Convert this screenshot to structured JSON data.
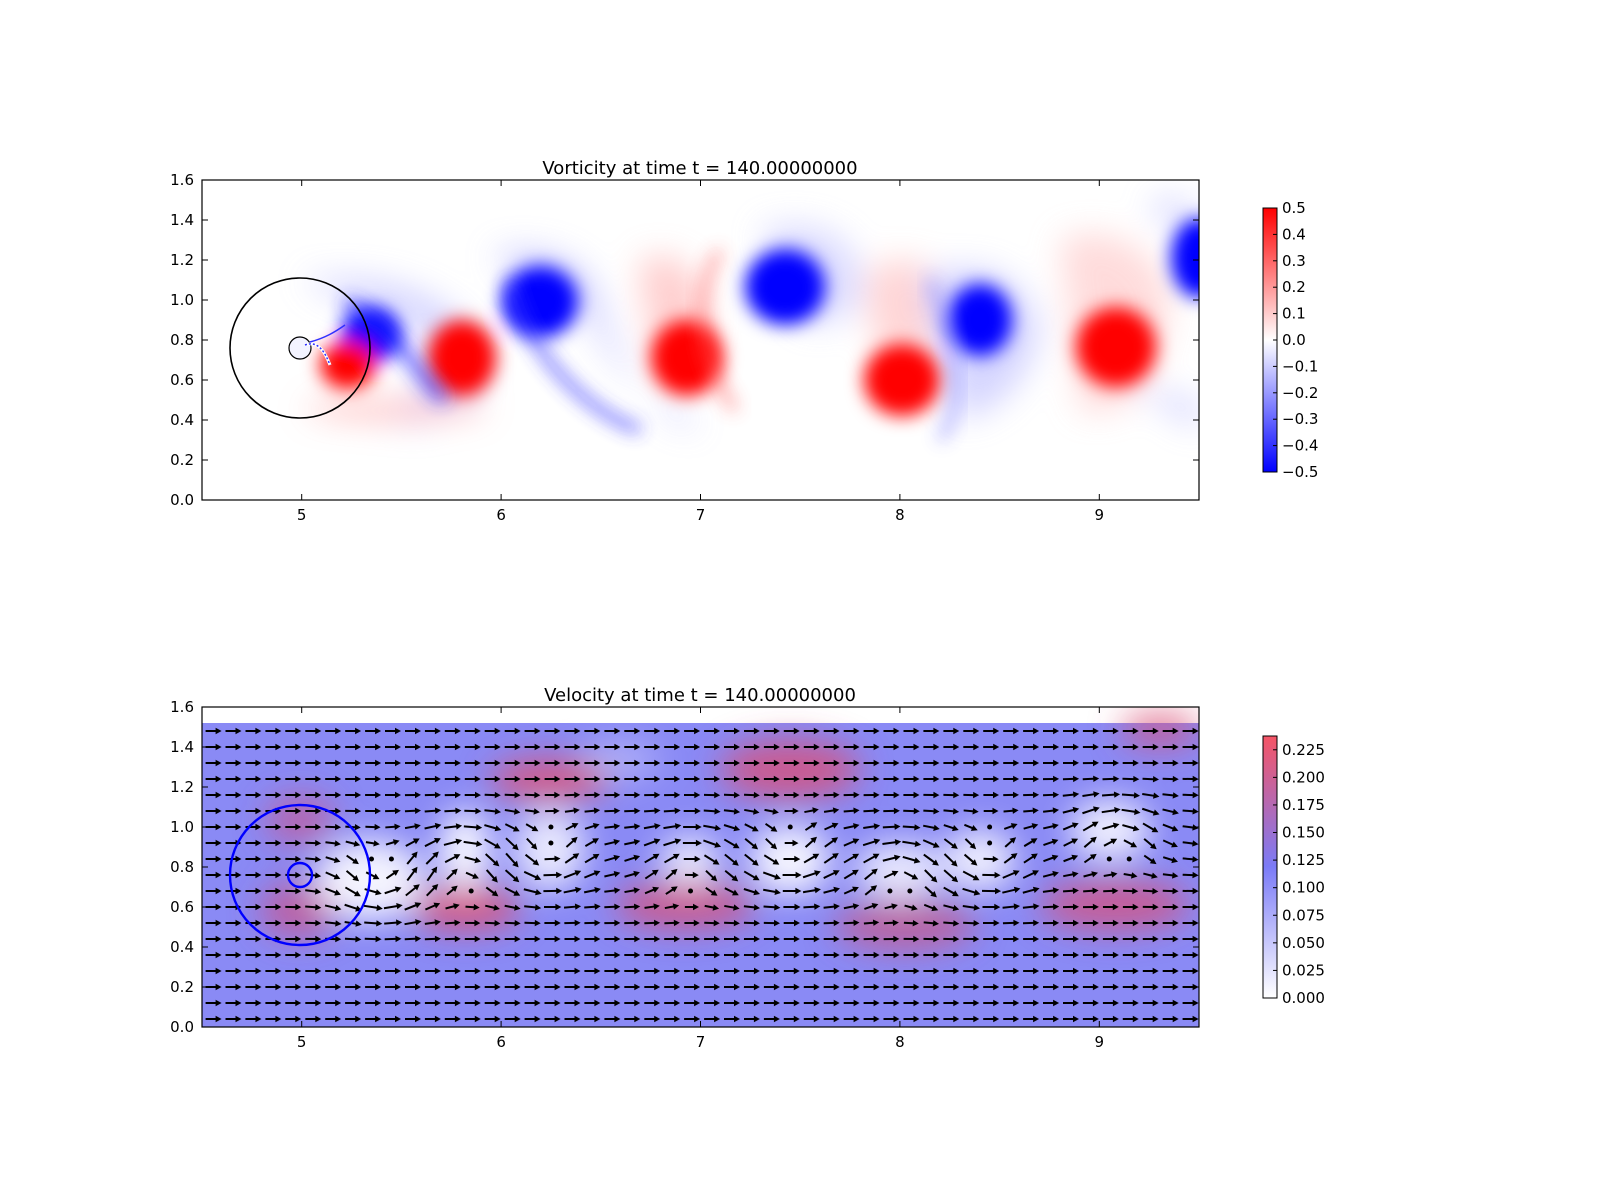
{
  "chart_data": [
    {
      "type": "heatmap",
      "title": "Vorticity at time t =   140.00000000",
      "xlabel": "",
      "ylabel": "",
      "xlim": [
        4.5,
        9.5
      ],
      "ylim": [
        0.0,
        1.6
      ],
      "xticks": [
        "5",
        "6",
        "7",
        "8",
        "9"
      ],
      "xtick_values": [
        5,
        6,
        7,
        8,
        9
      ],
      "yticks": [
        "0.0",
        "0.2",
        "0.4",
        "0.6",
        "0.8",
        "1.0",
        "1.2",
        "1.4",
        "1.6"
      ],
      "ytick_values": [
        0.0,
        0.2,
        0.4,
        0.6,
        0.8,
        1.0,
        1.2,
        1.4,
        1.6
      ],
      "colormap": "bwr",
      "colors": {
        "positive": "#ff0000",
        "zero": "#ffffff",
        "negative": "#0000ff"
      },
      "colorbar": {
        "range": [
          -0.5,
          0.5
        ],
        "tick_labels": [
          "0.5",
          "0.4",
          "0.3",
          "0.2",
          "0.1",
          "0.0",
          "−0.1",
          "−0.2",
          "−0.3",
          "−0.4",
          "−0.5"
        ],
        "tick_values": [
          0.5,
          0.4,
          0.3,
          0.2,
          0.1,
          0.0,
          -0.1,
          -0.2,
          -0.3,
          -0.4,
          -0.5
        ]
      },
      "vortices": [
        {
          "x": 5.3,
          "y": 0.86,
          "sign": "negative"
        },
        {
          "x": 5.18,
          "y": 0.66,
          "sign": "positive"
        },
        {
          "x": 5.8,
          "y": 0.7,
          "sign": "positive"
        },
        {
          "x": 6.2,
          "y": 1.01,
          "sign": "negative"
        },
        {
          "x": 6.93,
          "y": 0.72,
          "sign": "positive"
        },
        {
          "x": 7.43,
          "y": 1.08,
          "sign": "negative"
        },
        {
          "x": 8.0,
          "y": 0.6,
          "sign": "positive"
        },
        {
          "x": 8.38,
          "y": 0.92,
          "sign": "negative"
        },
        {
          "x": 9.07,
          "y": 0.77,
          "sign": "positive"
        },
        {
          "x": 9.5,
          "y": 1.22,
          "sign": "negative"
        }
      ],
      "circles": [
        {
          "cx": 5.0,
          "cy": 0.76,
          "r": 0.35,
          "color": "#000000"
        },
        {
          "cx": 5.0,
          "cy": 0.76,
          "r": 0.05,
          "color": "#000000"
        }
      ]
    },
    {
      "type": "heatmap",
      "title": "Velocity at time t =   140.00000000",
      "xlabel": "",
      "ylabel": "",
      "xlim": [
        4.5,
        9.5
      ],
      "ylim": [
        0.0,
        1.6
      ],
      "xticks": [
        "5",
        "6",
        "7",
        "8",
        "9"
      ],
      "xtick_values": [
        5,
        6,
        7,
        8,
        9
      ],
      "yticks": [
        "0.0",
        "0.2",
        "0.4",
        "0.6",
        "0.8",
        "1.0",
        "1.2",
        "1.4",
        "1.6"
      ],
      "ytick_values": [
        0.0,
        0.2,
        0.4,
        0.6,
        0.8,
        1.0,
        1.2,
        1.4,
        1.6
      ],
      "field_ylim": [
        0.0,
        1.52
      ],
      "overlay": "quiver",
      "colors": {
        "low": "#ffffff",
        "mid": "#7b7bf7",
        "high": "#f55566",
        "arrows": "#000000"
      },
      "colorbar": {
        "range": [
          0.0,
          0.2375
        ],
        "tick_labels": [
          "0.225",
          "0.200",
          "0.175",
          "0.150",
          "0.125",
          "0.100",
          "0.075",
          "0.050",
          "0.025",
          "0.000"
        ],
        "tick_values": [
          0.225,
          0.2,
          0.175,
          0.15,
          0.125,
          0.1,
          0.075,
          0.05,
          0.025,
          0.0
        ]
      },
      "circles": [
        {
          "cx": 5.0,
          "cy": 0.76,
          "r": 0.35,
          "color": "#0000ff"
        },
        {
          "cx": 5.0,
          "cy": 0.76,
          "r": 0.06,
          "color": "#0000ff"
        }
      ]
    }
  ]
}
